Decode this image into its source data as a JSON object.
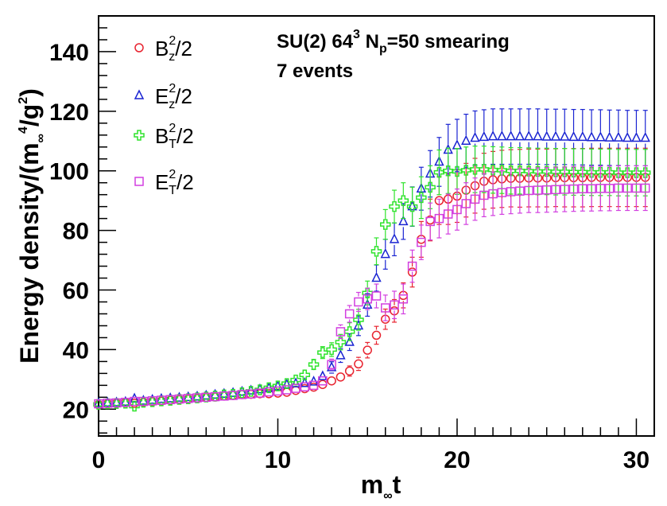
{
  "chart_data": {
    "type": "scatter",
    "title": "",
    "annotations": [
      "SU(2) 64³ Nₚ=50 smearing",
      "7 events"
    ],
    "annotation_parts": {
      "line1_a": "SU(2) 64",
      "line1_exp": "3",
      "line1_b": " N",
      "line1_sub": "p",
      "line1_c": "=50 smearing",
      "line2": "7 events"
    },
    "xlabel": "m∞t",
    "xlabel_parts": {
      "main": "m",
      "sub": "∞",
      "tail": "t"
    },
    "ylabel": "Energy density/(m∞⁴/g²)",
    "ylabel_parts": {
      "a": "Energy density/(m",
      "sub": "∞",
      "sup": "4",
      "b": "/g",
      "sup2": "2",
      "c": ")"
    },
    "xlim": [
      0,
      31
    ],
    "ylim": [
      11,
      152
    ],
    "x_ticks": [
      "0",
      "10",
      "20",
      "30"
    ],
    "y_ticks": [
      "20",
      "40",
      "60",
      "80",
      "100",
      "120",
      "140"
    ],
    "x": [
      0,
      0.5,
      1,
      1.5,
      2,
      2.5,
      3,
      3.5,
      4,
      4.5,
      5,
      5.5,
      6,
      6.5,
      7,
      7.5,
      8,
      8.5,
      9,
      9.5,
      10,
      10.5,
      11,
      11.5,
      12,
      12.5,
      13,
      13.5,
      14,
      14.5,
      15,
      15.5,
      16,
      16.5,
      17,
      17.5,
      18,
      18.5,
      19,
      19.5,
      20,
      20.5,
      21,
      21.5,
      22,
      22.5,
      23,
      23.5,
      24,
      24.5,
      25,
      25.5,
      26,
      26.5,
      27,
      27.5,
      28,
      28.5,
      29,
      29.5,
      30,
      30.5
    ],
    "series": [
      {
        "name": "B_z^2/2",
        "label_main": "B",
        "label_sup": "2",
        "label_sub": "z",
        "label_tail": "/2",
        "color": "#e8232f",
        "marker": "circle",
        "values": [
          21.5,
          21.8,
          22.0,
          22.2,
          22.0,
          22.3,
          22.5,
          22.7,
          23.0,
          23.2,
          23.4,
          23.6,
          23.9,
          24.1,
          24.4,
          24.6,
          24.9,
          25.0,
          25.2,
          25.2,
          25.4,
          25.7,
          26.3,
          26.9,
          27.4,
          28.3,
          29.5,
          30.8,
          32.8,
          35.2,
          39.8,
          44.8,
          50.2,
          53.0,
          58.2,
          66.0,
          77.0,
          83.5,
          90.0,
          90.5,
          91.5,
          93.5,
          95.0,
          96.5,
          97.0,
          97.3,
          97.5,
          97.5,
          97.6,
          97.6,
          97.6,
          97.7,
          97.7,
          97.7,
          97.7,
          97.8,
          97.8,
          97.8,
          97.8,
          97.8,
          97.8,
          97.8
        ],
        "errors": [
          0.6,
          0.6,
          0.6,
          0.6,
          0.6,
          0.6,
          0.6,
          0.6,
          0.7,
          0.7,
          0.7,
          0.7,
          0.7,
          0.7,
          0.7,
          0.7,
          0.8,
          0.8,
          0.8,
          0.8,
          0.8,
          0.8,
          0.9,
          0.9,
          0.9,
          1.0,
          1.2,
          1.4,
          1.7,
          2.2,
          2.6,
          3.0,
          3.4,
          3.8,
          4.2,
          5.0,
          6.0,
          7.0,
          8.0,
          8.5,
          8.8,
          9.0,
          9.2,
          9.4,
          9.5,
          9.6,
          9.6,
          9.7,
          9.7,
          9.7,
          9.7,
          9.7,
          9.8,
          9.8,
          9.8,
          9.8,
          9.8,
          9.8,
          9.8,
          9.8,
          9.8,
          9.8
        ]
      },
      {
        "name": "E_z^2/2",
        "label_main": "E",
        "label_sup": "2",
        "label_sub": "z",
        "label_tail": "/2",
        "color": "#1a24d2",
        "marker": "triangle",
        "values": [
          22.0,
          22.1,
          22.2,
          22.4,
          23.5,
          22.8,
          23.1,
          23.4,
          23.6,
          23.8,
          24.0,
          24.2,
          24.5,
          24.8,
          25.1,
          25.4,
          25.8,
          26.2,
          26.6,
          27.0,
          27.6,
          28.2,
          28.6,
          28.7,
          29.2,
          31.0,
          34.0,
          38.0,
          42.5,
          48.0,
          55.0,
          64.0,
          72.0,
          77.0,
          83.0,
          88.0,
          94.0,
          99.0,
          103.0,
          107.0,
          108.5,
          110.0,
          111.0,
          111.3,
          111.5,
          111.5,
          111.5,
          111.5,
          111.5,
          111.5,
          111.4,
          111.4,
          111.4,
          111.3,
          111.3,
          111.2,
          111.2,
          111.1,
          111.1,
          111.0,
          111.0,
          111.0
        ],
        "errors": [
          0.6,
          0.6,
          0.6,
          0.6,
          0.6,
          0.6,
          0.6,
          0.7,
          0.7,
          0.7,
          0.7,
          0.7,
          0.7,
          0.8,
          0.8,
          0.8,
          0.8,
          0.9,
          0.9,
          0.9,
          1.0,
          1.0,
          1.1,
          1.2,
          1.4,
          1.6,
          1.9,
          2.3,
          2.8,
          3.3,
          3.8,
          4.4,
          5.0,
          5.5,
          6.0,
          6.6,
          7.2,
          7.8,
          8.2,
          8.6,
          8.8,
          9.0,
          9.1,
          9.2,
          9.3,
          9.3,
          9.3,
          9.3,
          9.3,
          9.3,
          9.3,
          9.3,
          9.3,
          9.3,
          9.3,
          9.3,
          9.3,
          9.3,
          9.3,
          9.3,
          9.3,
          9.3
        ]
      },
      {
        "name": "B_T^2/2",
        "label_main": "B",
        "label_sup": "2",
        "label_sub": "T",
        "label_tail": "/2",
        "color": "#2fe32c",
        "marker": "cross",
        "values": [
          21.6,
          21.8,
          21.9,
          22.0,
          21.0,
          22.3,
          22.5,
          22.8,
          23.0,
          23.3,
          23.5,
          23.8,
          24.1,
          24.4,
          24.8,
          25.0,
          25.5,
          26.0,
          26.5,
          27.2,
          27.8,
          28.6,
          29.8,
          31.5,
          35.0,
          39.0,
          40.0,
          42.5,
          46.0,
          50.0,
          59.0,
          73.0,
          82.0,
          88.0,
          90.0,
          88.0,
          91.0,
          94.5,
          99.5,
          100.0,
          99.8,
          100.2,
          100.5,
          100.5,
          100.3,
          100.2,
          100.0,
          100.0,
          99.9,
          99.8,
          99.8,
          99.7,
          99.7,
          99.6,
          99.6,
          99.5,
          99.5,
          99.5,
          99.4,
          99.4,
          99.4,
          99.4
        ],
        "errors": [
          0.6,
          0.6,
          0.6,
          0.6,
          0.6,
          0.6,
          0.6,
          0.7,
          0.7,
          0.7,
          0.7,
          0.7,
          0.7,
          0.8,
          0.8,
          0.8,
          0.9,
          0.9,
          0.9,
          1.0,
          1.1,
          1.2,
          1.3,
          1.5,
          1.7,
          2.0,
          2.3,
          2.6,
          3.0,
          3.5,
          4.0,
          4.5,
          5.0,
          5.5,
          6.0,
          6.5,
          7.0,
          7.2,
          7.5,
          7.6,
          7.7,
          7.8,
          7.8,
          7.8,
          7.8,
          7.8,
          7.8,
          7.8,
          7.8,
          7.8,
          7.8,
          7.8,
          7.8,
          7.8,
          7.8,
          7.8,
          7.8,
          7.8,
          7.8,
          7.8,
          7.8,
          7.8
        ]
      },
      {
        "name": "E_T^2/2",
        "label_main": "E",
        "label_sup": "2",
        "label_sub": "T",
        "label_tail": "/2",
        "color": "#d23fe0",
        "marker": "square",
        "values": [
          21.8,
          22.0,
          22.1,
          22.3,
          22.6,
          22.6,
          22.8,
          23.0,
          23.2,
          23.4,
          23.6,
          23.8,
          24.0,
          24.2,
          24.4,
          24.6,
          24.9,
          25.1,
          25.4,
          25.8,
          26.1,
          26.5,
          27.0,
          27.5,
          28.0,
          29.5,
          35.0,
          46.0,
          52.0,
          56.0,
          57.0,
          58.0,
          54.0,
          55.0,
          57.0,
          68.0,
          76.0,
          83.0,
          84.0,
          85.5,
          87.0,
          89.0,
          90.5,
          91.8,
          92.3,
          92.7,
          93.0,
          93.2,
          93.4,
          93.5,
          93.6,
          93.7,
          93.8,
          93.9,
          94.0,
          94.0,
          94.1,
          94.1,
          94.2,
          94.2,
          94.2,
          94.2
        ],
        "errors": [
          0.6,
          0.6,
          0.6,
          0.6,
          0.6,
          0.6,
          0.6,
          0.6,
          0.7,
          0.7,
          0.7,
          0.7,
          0.7,
          0.7,
          0.7,
          0.8,
          0.8,
          0.8,
          0.8,
          0.9,
          0.9,
          1.0,
          1.0,
          1.1,
          1.2,
          1.4,
          1.8,
          2.3,
          2.8,
          3.2,
          3.6,
          4.0,
          4.3,
          4.6,
          5.0,
          5.4,
          5.8,
          6.2,
          6.5,
          6.7,
          6.9,
          7.0,
          7.1,
          7.2,
          7.3,
          7.3,
          7.4,
          7.4,
          7.4,
          7.5,
          7.5,
          7.5,
          7.5,
          7.5,
          7.5,
          7.5,
          7.5,
          7.5,
          7.5,
          7.5,
          7.5,
          7.5
        ]
      }
    ],
    "legend_position": "top-left"
  }
}
